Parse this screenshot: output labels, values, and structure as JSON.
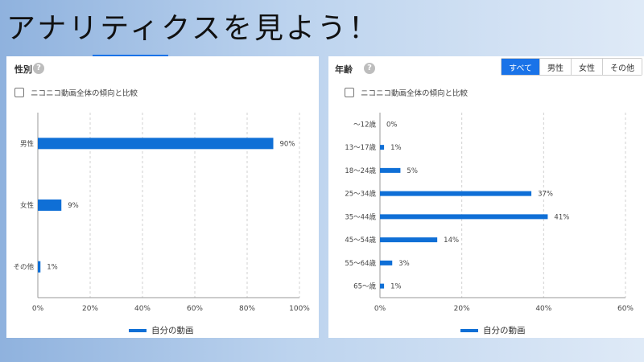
{
  "banner": {
    "title": "アナリティクスを見よう！"
  },
  "colors": {
    "accent": "#1a73e8",
    "bar": "#0f6fd6",
    "grid": "#d0d0d0"
  },
  "gender_panel": {
    "title": "性別",
    "help_icon": "?",
    "compare_label": "ニコニコ動画全体の傾向と比較",
    "legend_label": "自分の動画"
  },
  "age_panel": {
    "title": "年齢",
    "help_icon": "?",
    "compare_label": "ニコニコ動画全体の傾向と比較",
    "legend_label": "自分の動画",
    "filter_tabs": [
      "すべて",
      "男性",
      "女性",
      "その他"
    ],
    "active_tab": "すべて"
  },
  "chart_data": [
    {
      "type": "bar",
      "orientation": "horizontal",
      "categories": [
        "男性",
        "女性",
        "その他"
      ],
      "series": [
        {
          "name": "自分の動画",
          "values": [
            90,
            9,
            1
          ]
        }
      ],
      "value_labels": [
        "90%",
        "9%",
        "1%"
      ],
      "xticks": [
        "0%",
        "20%",
        "40%",
        "60%",
        "80%",
        "100%"
      ],
      "xlim": [
        0,
        100
      ],
      "grid": true,
      "legend_position": "bottom"
    },
    {
      "type": "bar",
      "orientation": "horizontal",
      "categories": [
        "～12歳",
        "13～17歳",
        "18～24歳",
        "25～34歳",
        "35～44歳",
        "45～54歳",
        "55～64歳",
        "65～歳"
      ],
      "series": [
        {
          "name": "自分の動画",
          "values": [
            0,
            1,
            5,
            37,
            41,
            14,
            3,
            1
          ]
        }
      ],
      "value_labels": [
        "0%",
        "1%",
        "5%",
        "37%",
        "41%",
        "14%",
        "3%",
        "1%"
      ],
      "xticks": [
        "0%",
        "20%",
        "40%",
        "60%"
      ],
      "xlim": [
        0,
        60
      ],
      "grid": true,
      "legend_position": "bottom"
    }
  ]
}
